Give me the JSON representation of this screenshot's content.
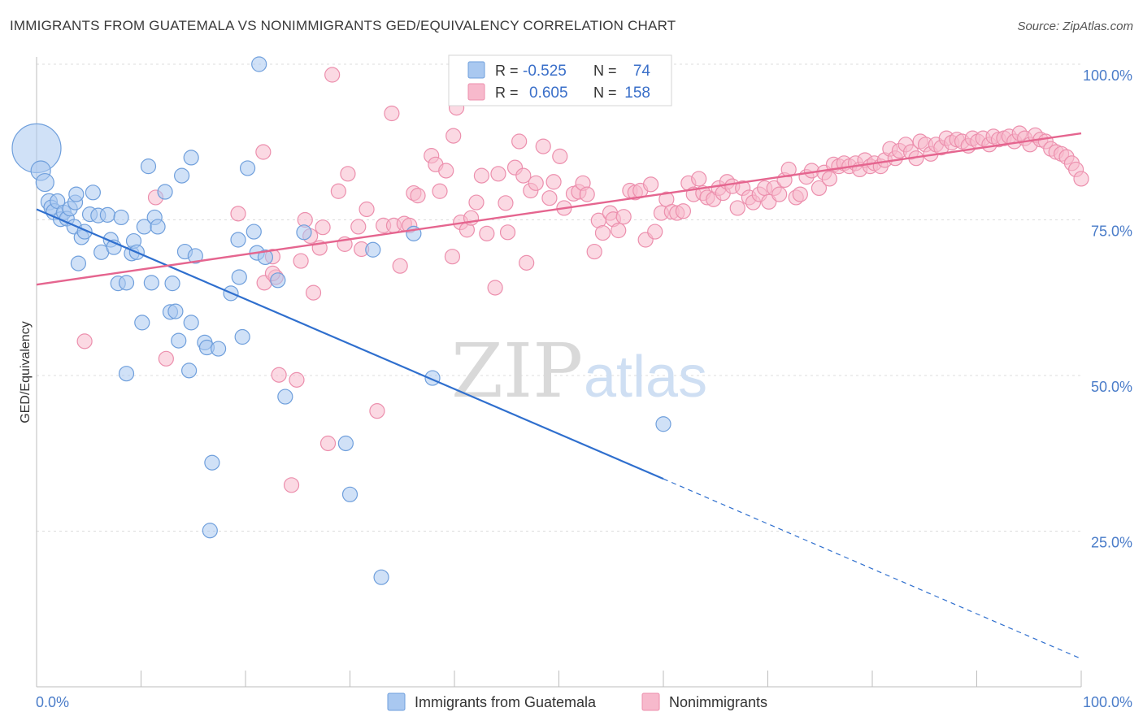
{
  "header": {
    "title": "IMMIGRANTS FROM GUATEMALA VS NONIMMIGRANTS GED/EQUIVALENCY CORRELATION CHART",
    "source": "Source: ZipAtlas.com"
  },
  "watermark": {
    "zip": "ZIP",
    "atlas": "atlas"
  },
  "legend": {
    "rows": [
      {
        "r_label": "R =",
        "r_value": "-0.525",
        "n_label": "N =",
        "n_value": "74",
        "color": "#a9c8f0"
      },
      {
        "r_label": "R =",
        "r_value": "0.605",
        "n_label": "N =",
        "n_value": "158",
        "color": "#f7b9cc"
      }
    ]
  },
  "bottom_legend": [
    {
      "label": "Immigrants from Guatemala",
      "color": "#a9c8f0"
    },
    {
      "label": "Nonimmigrants",
      "color": "#f7b9cc"
    }
  ],
  "colors": {
    "blue_fill": "#a9c8f0",
    "blue_stroke": "#6f9fdc",
    "blue_line": "#2f6fce",
    "pink_fill": "#f7b9cc",
    "pink_stroke": "#ec8fad",
    "pink_line": "#e5658f",
    "grid": "#dcdcdc",
    "tick_text": "#4a7cc9"
  },
  "chart_data": {
    "type": "scatter",
    "xlabel": "",
    "ylabel": "GED/Equivalency",
    "x_tick_labels": [
      "0.0%",
      "100.0%"
    ],
    "y_tick_labels": [
      "100.0%",
      "75.0%",
      "50.0%",
      "25.0%"
    ],
    "y_ticks": [
      100,
      75,
      50,
      25
    ],
    "xlim": [
      0,
      100
    ],
    "ylim": [
      0,
      100
    ],
    "grid": true,
    "legend_position": "top-center",
    "series": [
      {
        "name": "Immigrants from Guatemala",
        "color": "#a9c8f0",
        "trend": {
          "x": [
            0,
            60
          ],
          "y": [
            76.7,
            33.4
          ],
          "dashed_extension_to": [
            100,
            4.5
          ]
        },
        "points": [
          [
            0,
            86.5,
            30
          ],
          [
            0.4,
            82.9,
            12
          ],
          [
            0.8,
            81,
            11
          ],
          [
            1.2,
            77.9,
            10
          ],
          [
            1.4,
            77,
            9
          ],
          [
            1.7,
            76.3,
            10
          ],
          [
            2,
            78,
            9
          ],
          [
            2.3,
            75.1,
            9
          ],
          [
            2.6,
            76.2,
            9
          ],
          [
            2.9,
            75.2,
            9
          ],
          [
            3.2,
            76.8,
            9
          ],
          [
            3.6,
            73.9,
            9
          ],
          [
            3.7,
            77.8,
            9
          ],
          [
            3.8,
            79.1,
            9
          ],
          [
            4,
            68,
            9
          ],
          [
            4.3,
            72.2,
            9
          ],
          [
            4.6,
            73.1,
            9
          ],
          [
            5.1,
            75.9,
            9
          ],
          [
            5.4,
            79.4,
            9
          ],
          [
            5.9,
            75.7,
            9
          ],
          [
            6.2,
            69.8,
            9
          ],
          [
            6.8,
            75.8,
            9
          ],
          [
            7.1,
            71.8,
            9
          ],
          [
            7.4,
            70.6,
            9
          ],
          [
            7.8,
            64.8,
            9
          ],
          [
            8.1,
            75.4,
            9
          ],
          [
            8.6,
            64.9,
            9
          ],
          [
            8.6,
            50.3,
            9
          ],
          [
            9.1,
            69.6,
            9
          ],
          [
            9.3,
            71.6,
            9
          ],
          [
            9.6,
            69.8,
            9
          ],
          [
            10.1,
            58.5,
            9
          ],
          [
            10.3,
            73.9,
            9
          ],
          [
            10.7,
            83.6,
            9
          ],
          [
            11,
            64.9,
            9
          ],
          [
            11.3,
            75.4,
            9
          ],
          [
            11.6,
            73.9,
            9
          ],
          [
            12.3,
            79.5,
            9
          ],
          [
            12.8,
            60.2,
            9
          ],
          [
            13,
            64.8,
            9
          ],
          [
            13.3,
            60.3,
            9
          ],
          [
            13.6,
            55.6,
            9
          ],
          [
            13.9,
            82.1,
            9
          ],
          [
            14.2,
            69.9,
            9
          ],
          [
            14.6,
            50.8,
            9
          ],
          [
            14.8,
            58.5,
            9
          ],
          [
            14.8,
            85,
            9
          ],
          [
            15.2,
            69.2,
            9
          ],
          [
            16.1,
            55.3,
            9
          ],
          [
            16.3,
            54.5,
            9
          ],
          [
            16.8,
            36,
            9
          ],
          [
            16.6,
            25.1,
            9
          ],
          [
            17.4,
            54.3,
            9
          ],
          [
            18.6,
            63.2,
            9
          ],
          [
            19.3,
            71.8,
            9
          ],
          [
            19.4,
            65.8,
            9
          ],
          [
            19.7,
            56.2,
            9
          ],
          [
            20.2,
            83.3,
            9
          ],
          [
            20.8,
            73.1,
            9
          ],
          [
            21.1,
            69.7,
            9
          ],
          [
            21.3,
            100,
            9
          ],
          [
            21.9,
            69,
            9
          ],
          [
            23.1,
            65.3,
            9
          ],
          [
            23.8,
            46.6,
            9
          ],
          [
            25.6,
            73,
            9
          ],
          [
            29.6,
            39.1,
            9
          ],
          [
            30,
            30.9,
            9
          ],
          [
            32.2,
            70.2,
            9
          ],
          [
            33,
            17.6,
            9
          ],
          [
            36.1,
            72.8,
            9
          ],
          [
            37.9,
            49.6,
            9
          ],
          [
            60,
            42.2,
            9
          ]
        ]
      },
      {
        "name": "Nonimmigrants",
        "color": "#f7b9cc",
        "trend": {
          "x": [
            0,
            100
          ],
          "y": [
            64.6,
            88.9
          ]
        },
        "points": [
          [
            4.6,
            55.5,
            9
          ],
          [
            11.4,
            78.6,
            9
          ],
          [
            12.4,
            52.7,
            9
          ],
          [
            19.3,
            76,
            9
          ],
          [
            21.7,
            85.9,
            9
          ],
          [
            21.8,
            64.9,
            9
          ],
          [
            22.6,
            69.1,
            9
          ],
          [
            22.9,
            65.8,
            9
          ],
          [
            22.6,
            66.4,
            9
          ],
          [
            23.2,
            50.1,
            9
          ],
          [
            24.4,
            32.4,
            9
          ],
          [
            24.9,
            49.3,
            9
          ],
          [
            25.3,
            68.4,
            9
          ],
          [
            25.7,
            75,
            9
          ],
          [
            26.2,
            72.4,
            9
          ],
          [
            26.5,
            63.3,
            9
          ],
          [
            27.1,
            70.5,
            9
          ],
          [
            27.4,
            73.8,
            9
          ],
          [
            27.9,
            39.1,
            9
          ],
          [
            28.3,
            98.3,
            9
          ],
          [
            28.9,
            79.6,
            9
          ],
          [
            29.5,
            71.1,
            9
          ],
          [
            29.8,
            82.4,
            9
          ],
          [
            30.8,
            73.9,
            9
          ],
          [
            31.1,
            70.3,
            9
          ],
          [
            31.6,
            76.7,
            9
          ],
          [
            32.6,
            44.3,
            9
          ],
          [
            33.2,
            74.1,
            9
          ],
          [
            34,
            92.1,
            9
          ],
          [
            34.2,
            74.1,
            9
          ],
          [
            34.8,
            67.6,
            9
          ],
          [
            35.2,
            74.4,
            9
          ],
          [
            35.7,
            74.1,
            9
          ],
          [
            36.1,
            79.3,
            9
          ],
          [
            36.5,
            78.9,
            9
          ],
          [
            37.8,
            85.3,
            9
          ],
          [
            38.2,
            83.9,
            9
          ],
          [
            38.6,
            79.6,
            9
          ],
          [
            39.2,
            82.9,
            9
          ],
          [
            39.8,
            69.1,
            9
          ],
          [
            39.9,
            88.5,
            9
          ],
          [
            40.2,
            93,
            9
          ],
          [
            40.6,
            74.6,
            9
          ],
          [
            41.2,
            73.4,
            9
          ],
          [
            41.6,
            75.3,
            9
          ],
          [
            42.1,
            77.8,
            9
          ],
          [
            42.6,
            82.1,
            9
          ],
          [
            43.1,
            72.8,
            9
          ],
          [
            43.9,
            64.1,
            9
          ],
          [
            44.2,
            82.4,
            9
          ],
          [
            44.9,
            77.7,
            9
          ],
          [
            45.1,
            73,
            9
          ],
          [
            45.8,
            83.4,
            9
          ],
          [
            46.2,
            87.6,
            9
          ],
          [
            46.6,
            82.1,
            9
          ],
          [
            46.9,
            68.1,
            9
          ],
          [
            47.3,
            79.7,
            9
          ],
          [
            47.8,
            80.9,
            9
          ],
          [
            48.5,
            86.8,
            9
          ],
          [
            49.1,
            78.5,
            9
          ],
          [
            49.5,
            81.1,
            9
          ],
          [
            50.1,
            85.2,
            9
          ],
          [
            50.5,
            76.9,
            9
          ],
          [
            51.4,
            79.2,
            9
          ],
          [
            51.9,
            79.5,
            9
          ],
          [
            52.3,
            80.9,
            9
          ],
          [
            52.7,
            79.1,
            9
          ],
          [
            53.4,
            69.9,
            9
          ],
          [
            53.8,
            74.9,
            9
          ],
          [
            54.2,
            72.9,
            9
          ],
          [
            54.9,
            76.1,
            9
          ],
          [
            55.2,
            75.1,
            9
          ],
          [
            55.7,
            73.3,
            9
          ],
          [
            56.2,
            75.5,
            9
          ],
          [
            56.8,
            79.7,
            9
          ],
          [
            57.3,
            79.4,
            9
          ],
          [
            57.8,
            79.7,
            9
          ],
          [
            58.3,
            71.8,
            9
          ],
          [
            58.8,
            80.7,
            9
          ],
          [
            59.2,
            73.1,
            9
          ],
          [
            59.8,
            76.1,
            9
          ],
          [
            60.3,
            78.3,
            9
          ],
          [
            60.8,
            76.3,
            9
          ],
          [
            61.3,
            76.1,
            9
          ],
          [
            61.9,
            76.4,
            9
          ],
          [
            62.4,
            80.9,
            9
          ],
          [
            62.9,
            79.1,
            9
          ],
          [
            63.4,
            81.6,
            9
          ],
          [
            63.8,
            79.3,
            9
          ],
          [
            64.2,
            78.6,
            9
          ],
          [
            64.8,
            78.3,
            9
          ],
          [
            65.3,
            80.1,
            9
          ],
          [
            65.7,
            79.3,
            9
          ],
          [
            66.1,
            81.1,
            9
          ],
          [
            66.6,
            80.4,
            9
          ],
          [
            67.1,
            76.9,
            9
          ],
          [
            67.6,
            80.1,
            9
          ],
          [
            68.2,
            78.6,
            9
          ],
          [
            68.6,
            77.8,
            9
          ],
          [
            69.2,
            79.1,
            9
          ],
          [
            69.7,
            80.1,
            9
          ],
          [
            70.1,
            77.9,
            9
          ],
          [
            70.6,
            80.1,
            9
          ],
          [
            71.1,
            79.1,
            9
          ],
          [
            71.6,
            81.4,
            9
          ],
          [
            72,
            83.1,
            9
          ],
          [
            72.7,
            78.6,
            9
          ],
          [
            73.1,
            79.1,
            9
          ],
          [
            73.7,
            81.9,
            9
          ],
          [
            74.2,
            82.9,
            9
          ],
          [
            74.9,
            80.1,
            9
          ],
          [
            75.4,
            82.6,
            9
          ],
          [
            75.9,
            81.6,
            9
          ],
          [
            76.3,
            83.9,
            9
          ],
          [
            76.8,
            83.6,
            9
          ],
          [
            77.3,
            84.1,
            9
          ],
          [
            77.8,
            83.6,
            9
          ],
          [
            78.4,
            84.1,
            9
          ],
          [
            78.8,
            83.1,
            9
          ],
          [
            79.3,
            84.6,
            9
          ],
          [
            79.8,
            83.6,
            9
          ],
          [
            80.2,
            84.1,
            9
          ],
          [
            80.8,
            83.6,
            9
          ],
          [
            81.2,
            84.6,
            9
          ],
          [
            81.7,
            86.4,
            9
          ],
          [
            82.2,
            84.9,
            9
          ],
          [
            82.6,
            86.1,
            9
          ],
          [
            83.2,
            87.1,
            9
          ],
          [
            83.7,
            85.9,
            9
          ],
          [
            84.2,
            84.9,
            9
          ],
          [
            84.6,
            87.6,
            9
          ],
          [
            85.1,
            87.1,
            9
          ],
          [
            85.6,
            85.6,
            9
          ],
          [
            86.1,
            87.1,
            9
          ],
          [
            86.6,
            86.6,
            9
          ],
          [
            87.1,
            88.1,
            9
          ],
          [
            87.6,
            87.4,
            9
          ],
          [
            88.1,
            87.9,
            9
          ],
          [
            88.6,
            87.6,
            9
          ],
          [
            89.2,
            86.9,
            9
          ],
          [
            89.6,
            88.1,
            9
          ],
          [
            90.1,
            87.6,
            9
          ],
          [
            90.6,
            88.1,
            9
          ],
          [
            91.2,
            87.1,
            9
          ],
          [
            91.6,
            88.4,
            9
          ],
          [
            92.1,
            87.9,
            9
          ],
          [
            92.6,
            88.1,
            9
          ],
          [
            93.1,
            88.4,
            9
          ],
          [
            93.6,
            87.6,
            9
          ],
          [
            94.1,
            88.9,
            9
          ],
          [
            94.6,
            88.1,
            9
          ],
          [
            95.1,
            87.1,
            9
          ],
          [
            95.6,
            88.6,
            9
          ],
          [
            96.1,
            87.9,
            9
          ],
          [
            96.6,
            87.6,
            9
          ],
          [
            97.1,
            86.4,
            9
          ],
          [
            97.6,
            85.9,
            9
          ],
          [
            98.1,
            85.6,
            9
          ],
          [
            98.6,
            85.1,
            9
          ],
          [
            99.1,
            84.1,
            9
          ],
          [
            99.5,
            83.1,
            9
          ],
          [
            100,
            81.6,
            9
          ]
        ]
      }
    ]
  }
}
